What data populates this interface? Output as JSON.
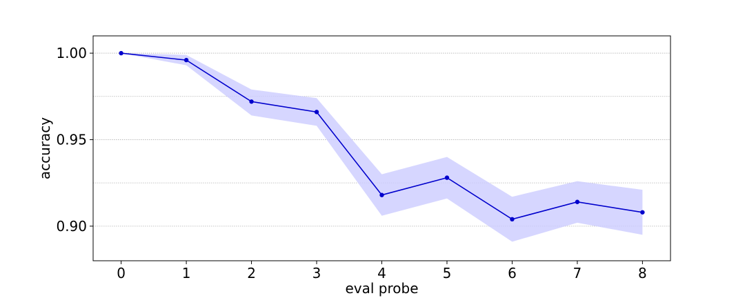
{
  "chart_data": {
    "type": "line",
    "xlabel": "eval probe",
    "ylabel": "accuracy",
    "x": [
      0,
      1,
      2,
      3,
      4,
      5,
      6,
      7,
      8
    ],
    "xticks": [
      "0",
      "1",
      "2",
      "3",
      "4",
      "5",
      "6",
      "7",
      "8"
    ],
    "yticks": [
      "0.90",
      "0.95",
      "1.00"
    ],
    "ytick_values": [
      0.9,
      0.95,
      1.0
    ],
    "xlim": [
      -0.43,
      8.43
    ],
    "ylim": [
      0.88,
      1.01
    ],
    "grid": "horizontal dotted",
    "gridlines_y": [
      0.9,
      0.925,
      0.95,
      0.975,
      1.0
    ],
    "series": [
      {
        "values": [
          1.0,
          0.996,
          0.972,
          0.966,
          0.918,
          0.928,
          0.904,
          0.914,
          0.908
        ],
        "upper": [
          1.0,
          0.999,
          0.979,
          0.974,
          0.93,
          0.94,
          0.917,
          0.926,
          0.921
        ],
        "lower": [
          1.0,
          0.993,
          0.964,
          0.958,
          0.906,
          0.916,
          0.891,
          0.902,
          0.895
        ],
        "color": "#0000cc",
        "band_color": "#ccccff"
      }
    ]
  }
}
